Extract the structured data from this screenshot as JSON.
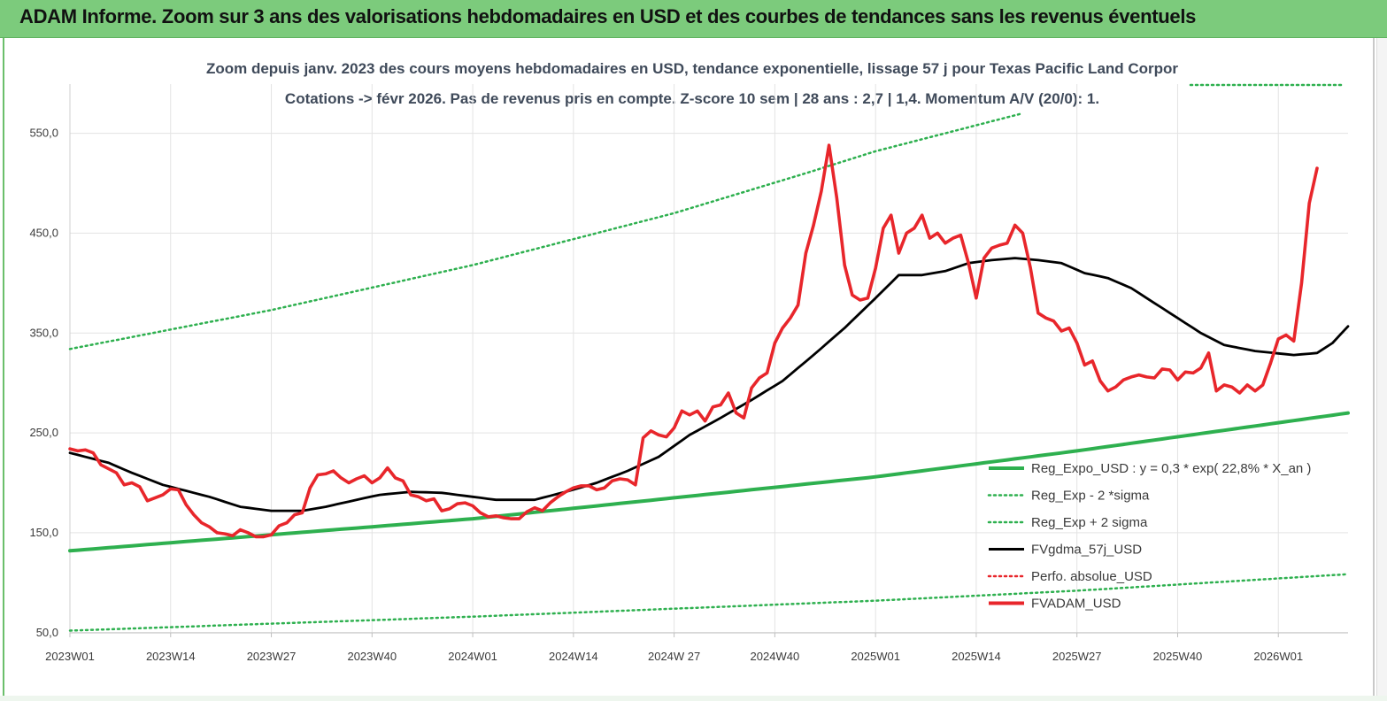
{
  "banner": {
    "title": "ADAM Informe. Zoom sur 3 ans des valorisations hebdomadaires en USD et des courbes de tendances sans les revenus éventuels"
  },
  "chart_data": {
    "type": "line",
    "title": "Zoom depuis janv. 2023 des cours moyens hebdomadaires en USD, tendance exponentielle, lissage 57 j pour Texas Pacific Land Corpor",
    "subtitle": "Cotations -> févr 2026. Pas de revenus pris en compte. Z-score 10 sem | 28 ans : 2,7 | 1,4. Momentum A/V (20/0): 1.",
    "xlabel": "",
    "ylabel": "",
    "ylim": [
      50,
      600
    ],
    "y_ticks": [
      "50,0",
      "150,0",
      "250,0",
      "350,0",
      "450,0",
      "550,0"
    ],
    "y_tick_values": [
      50,
      150,
      250,
      350,
      450,
      550
    ],
    "x_ticks": [
      "2023W01",
      "2023W14",
      "2023W27",
      "2023W40",
      "2024W01",
      "2024W14",
      "2024W 27",
      "2024W40",
      "2025W01",
      "2025W14",
      "2025W27",
      "2025W40",
      "2026W01"
    ],
    "x_tick_index": [
      0,
      13,
      26,
      39,
      52,
      65,
      78,
      91,
      104,
      117,
      130,
      143,
      156
    ],
    "x_count": 166,
    "grid": "vertical",
    "legend_position": "right",
    "series": [
      {
        "name": "Reg_Expo_USD : y = 0,3 * exp( 22,8% * X_an )",
        "color": "#2eb04f",
        "style": "solid-thick",
        "anchors": [
          [
            0,
            132
          ],
          [
            52,
            164
          ],
          [
            104,
            206
          ],
          [
            130,
            232
          ],
          [
            166,
            271
          ]
        ]
      },
      {
        "name": "Reg_Exp - 2 *sigma",
        "color": "#2eb04f",
        "style": "dotted",
        "anchors": [
          [
            0,
            52
          ],
          [
            52,
            66
          ],
          [
            104,
            82
          ],
          [
            130,
            92
          ],
          [
            166,
            109
          ]
        ]
      },
      {
        "name": "Reg_Exp + 2 sigma",
        "color": "#2eb04f",
        "style": "dotted",
        "anchors": [
          [
            0,
            334
          ],
          [
            26,
            373
          ],
          [
            52,
            418
          ],
          [
            78,
            470
          ],
          [
            95,
            510
          ],
          [
            104,
            532
          ],
          [
            123,
            570
          ]
        ]
      },
      {
        "name": "FVgdma_57j_USD",
        "color": "#000000",
        "style": "solid",
        "anchors": [
          [
            0,
            230
          ],
          [
            5,
            220
          ],
          [
            8,
            210
          ],
          [
            12,
            198
          ],
          [
            18,
            186
          ],
          [
            22,
            176
          ],
          [
            26,
            172
          ],
          [
            30,
            172
          ],
          [
            33,
            176
          ],
          [
            37,
            183
          ],
          [
            40,
            188
          ],
          [
            44,
            191
          ],
          [
            48,
            190
          ],
          [
            52,
            186
          ],
          [
            55,
            183
          ],
          [
            60,
            183
          ],
          [
            64,
            191
          ],
          [
            68,
            200
          ],
          [
            72,
            212
          ],
          [
            76,
            226
          ],
          [
            80,
            248
          ],
          [
            84,
            265
          ],
          [
            88,
            283
          ],
          [
            92,
            302
          ],
          [
            96,
            328
          ],
          [
            100,
            355
          ],
          [
            104,
            385
          ],
          [
            107,
            408
          ],
          [
            110,
            408
          ],
          [
            113,
            412
          ],
          [
            116,
            420
          ],
          [
            119,
            423
          ],
          [
            122,
            425
          ],
          [
            125,
            423
          ],
          [
            128,
            420
          ],
          [
            131,
            410
          ],
          [
            134,
            405
          ],
          [
            137,
            395
          ],
          [
            140,
            380
          ],
          [
            143,
            365
          ],
          [
            146,
            350
          ],
          [
            149,
            338
          ],
          [
            153,
            332
          ],
          [
            158,
            328
          ],
          [
            161,
            330
          ],
          [
            163,
            340
          ],
          [
            166,
            365
          ],
          [
            169,
            400
          ],
          [
            172,
            440
          ]
        ]
      },
      {
        "name": "Perfo. absolue_USD",
        "color": "#e8262b",
        "style": "dotted",
        "anchors": []
      },
      {
        "name": "FVADAM_USD",
        "color": "#e8262b",
        "style": "solid-thick",
        "values": [
          234,
          232,
          233,
          230,
          218,
          214,
          210,
          198,
          200,
          196,
          182,
          185,
          188,
          194,
          193,
          178,
          168,
          160,
          156,
          150,
          149,
          147,
          153,
          150,
          146,
          146,
          148,
          157,
          160,
          168,
          170,
          195,
          208,
          209,
          212,
          205,
          200,
          204,
          207,
          200,
          205,
          215,
          205,
          202,
          188,
          186,
          182,
          184,
          172,
          174,
          179,
          180,
          177,
          170,
          166,
          167,
          165,
          164,
          164,
          171,
          175,
          172,
          180,
          186,
          191,
          195,
          197,
          197,
          193,
          195,
          202,
          204,
          203,
          198,
          245,
          252,
          248,
          246,
          255,
          272,
          268,
          272,
          262,
          276,
          278,
          290,
          270,
          265,
          295,
          305,
          310,
          340,
          355,
          365,
          378,
          430,
          458,
          492,
          538,
          485,
          418,
          388,
          383,
          385,
          415,
          455,
          468,
          430,
          450,
          455,
          468,
          445,
          450,
          440,
          445,
          448,
          420,
          385,
          425,
          435,
          438,
          440,
          458,
          450,
          415,
          370,
          365,
          362,
          352,
          355,
          340,
          318,
          322,
          302,
          292,
          296,
          303,
          306,
          308,
          306,
          305,
          314,
          313,
          303,
          311,
          310,
          315,
          330,
          292,
          298,
          296,
          290,
          298,
          292,
          298,
          320,
          344,
          348,
          342,
          400,
          480,
          515
        ]
      }
    ]
  },
  "legend": [
    {
      "label": "Reg_Expo_USD : y = 0,3  * exp( 22,8% *  X_an )",
      "color": "#2eb04f",
      "style": "solid-thick"
    },
    {
      "label": "Reg_Exp - 2 *sigma",
      "color": "#2eb04f",
      "style": "dotted"
    },
    {
      "label": "Reg_Exp + 2 sigma",
      "color": "#2eb04f",
      "style": "dotted"
    },
    {
      "label": "FVgdma_57j_USD",
      "color": "#000000",
      "style": "solid"
    },
    {
      "label": "Perfo. absolue_USD",
      "color": "#e8262b",
      "style": "dotted"
    },
    {
      "label": "FVADAM_USD",
      "color": "#e8262b",
      "style": "solid-thick"
    }
  ]
}
